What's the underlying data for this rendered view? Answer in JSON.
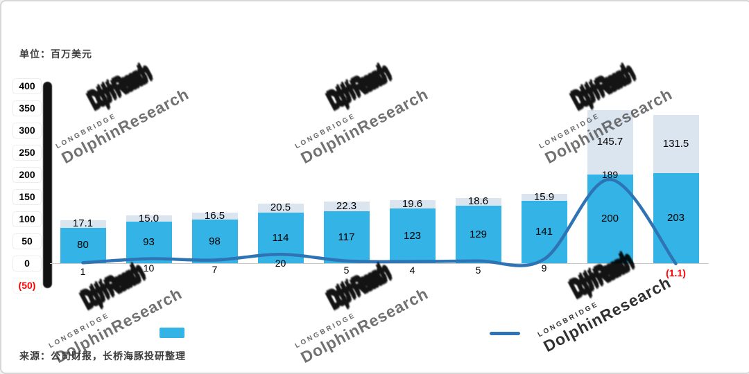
{
  "header": {
    "unit_label": "单位：百万美元"
  },
  "footer": {
    "source_label": "来源：公司财报，长桥海豚投研整理"
  },
  "watermark": {
    "small": "LONGBRIDGE",
    "big": "DolphinResearch"
  },
  "legend": [
    {
      "type": "bar-swatch",
      "color": "#33b3e6",
      "label": ""
    },
    {
      "type": "line-swatch",
      "color": "#2e74b5",
      "label": ""
    }
  ],
  "chart_data": {
    "type": "bar",
    "note": "stacked bars with line overlay; x-axis category labels obscured by watermark",
    "categories": [
      "",
      "",
      "",
      "",
      "",
      "",
      "",
      "",
      "",
      ""
    ],
    "series": [
      {
        "name": "bar-bottom",
        "type": "bar",
        "color": "#33b3e6",
        "values": [
          80,
          93,
          98,
          114,
          117,
          123,
          129,
          141,
          200,
          203
        ],
        "labels": [
          "80",
          "93",
          "98",
          "114",
          "117",
          "123",
          "129",
          "141",
          "200",
          "203"
        ]
      },
      {
        "name": "bar-top",
        "type": "bar",
        "color": "#dbe5f0",
        "values": [
          17.1,
          15.0,
          16.5,
          20.5,
          22.3,
          19.6,
          18.6,
          15.9,
          145.7,
          131.5
        ],
        "labels": [
          "17.1",
          "15.0",
          "16.5",
          "20.5",
          "22.3",
          "19.6",
          "18.6",
          "15.9",
          "145.7",
          "131.5"
        ]
      },
      {
        "name": "line",
        "type": "line",
        "color": "#2e74b5",
        "values": [
          1,
          10,
          7,
          20,
          5,
          4,
          5,
          9,
          189,
          -1.1
        ],
        "labels": [
          "1",
          "10",
          "7",
          "20",
          "5",
          "4",
          "5",
          "9",
          "189",
          "(1.1)"
        ]
      }
    ],
    "ylim": [
      -50,
      400
    ],
    "yticks": [
      400,
      350,
      300,
      250,
      200,
      150,
      100,
      50,
      0,
      -50
    ],
    "ytick_labels": [
      "400",
      "350",
      "300",
      "250",
      "200",
      "150",
      "100",
      "50",
      "0",
      "(50)"
    ],
    "title": "",
    "xlabel": "",
    "ylabel": "单位：百万美元",
    "grid": false,
    "legend_position": "bottom"
  }
}
